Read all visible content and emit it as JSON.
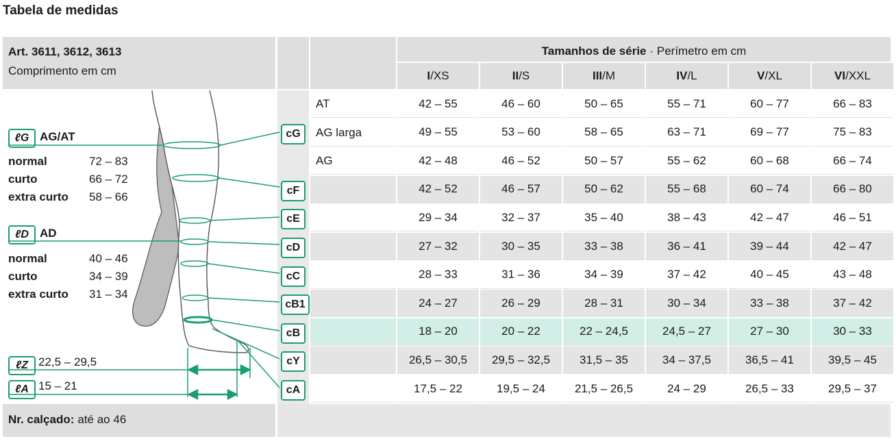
{
  "title": "Tabela de medidas",
  "article": "Art. 3611, 3612, 3613",
  "length_unit": "Comprimento em cm",
  "sizes_heading": {
    "bold": "Tamanhos de série",
    "rest": "· Perímetro em cm"
  },
  "sizes": [
    {
      "roman": "I",
      "letter": "/XS"
    },
    {
      "roman": "II",
      "letter": "/S"
    },
    {
      "roman": "III",
      "letter": "/M"
    },
    {
      "roman": "IV",
      "letter": "/L"
    },
    {
      "roman": "V",
      "letter": "/XL"
    },
    {
      "roman": "VI",
      "letter": "/XXL"
    }
  ],
  "rows": [
    {
      "label": "AT",
      "values": [
        "42 – 55",
        "46 – 60",
        "50 – 65",
        "55 – 71",
        "60 – 77",
        "66 – 83"
      ]
    },
    {
      "code": "cG",
      "label": "AG larga",
      "values": [
        "49 – 55",
        "53 – 60",
        "58 – 65",
        "63 – 71",
        "69 – 77",
        "75 – 83"
      ]
    },
    {
      "label": "AG",
      "values": [
        "42 – 48",
        "46 – 52",
        "50 – 57",
        "55 – 62",
        "60 – 68",
        "66 – 74"
      ]
    },
    {
      "code": "cF",
      "values": [
        "42 – 52",
        "46 – 57",
        "50 – 62",
        "55 – 68",
        "60 – 74",
        "66 – 80"
      ]
    },
    {
      "code": "cE",
      "values": [
        "29 – 34",
        "32 – 37",
        "35 – 40",
        "38 – 43",
        "42 – 47",
        "46 – 51"
      ]
    },
    {
      "code": "cD",
      "values": [
        "27 – 32",
        "30 – 35",
        "33 – 38",
        "36 – 41",
        "39 – 44",
        "42 – 47"
      ]
    },
    {
      "code": "cC",
      "values": [
        "28 – 33",
        "31 – 36",
        "34 – 39",
        "37 – 42",
        "40 – 45",
        "43 – 48"
      ]
    },
    {
      "code": "cB1",
      "values": [
        "24 – 27",
        "26 – 29",
        "28 – 31",
        "30 – 34",
        "33 – 38",
        "37 – 42"
      ]
    },
    {
      "code": "cB",
      "values": [
        "18 – 20",
        "20 – 22",
        "22 – 24,5",
        "24,5 – 27",
        "27 – 30",
        "30 – 33"
      ]
    },
    {
      "code": "cY",
      "values": [
        "26,5 – 30,5",
        "29,5 – 32,5",
        "31,5 – 35",
        "34 – 37,5",
        "36,5 – 41",
        "39,5 – 45"
      ]
    },
    {
      "code": "cA",
      "values": [
        "17,5 – 22",
        "19,5 – 24",
        "21,5 – 26,5",
        "24 – 29",
        "26,5 – 33",
        "29,5 – 37"
      ]
    }
  ],
  "lengths": [
    {
      "symbol": "ℓG",
      "name": "AG/AT",
      "rows": [
        {
          "label": "normal",
          "range": "72 – 83"
        },
        {
          "label": "curto",
          "range": "66 – 72"
        },
        {
          "label": "extra curto",
          "range": "58 – 66"
        }
      ]
    },
    {
      "symbol": "ℓD",
      "name": "AD",
      "rows": [
        {
          "label": "normal",
          "range": "40 – 46"
        },
        {
          "label": "curto",
          "range": "34 – 39"
        },
        {
          "label": "extra curto",
          "range": "31 – 34"
        }
      ]
    },
    {
      "symbol": "ℓZ",
      "range": "22,5 – 29,5"
    },
    {
      "symbol": "ℓA",
      "range": "15 – 21"
    }
  ],
  "footer": {
    "bold": "Nr. calçado:",
    "rest": "até ao 46"
  }
}
